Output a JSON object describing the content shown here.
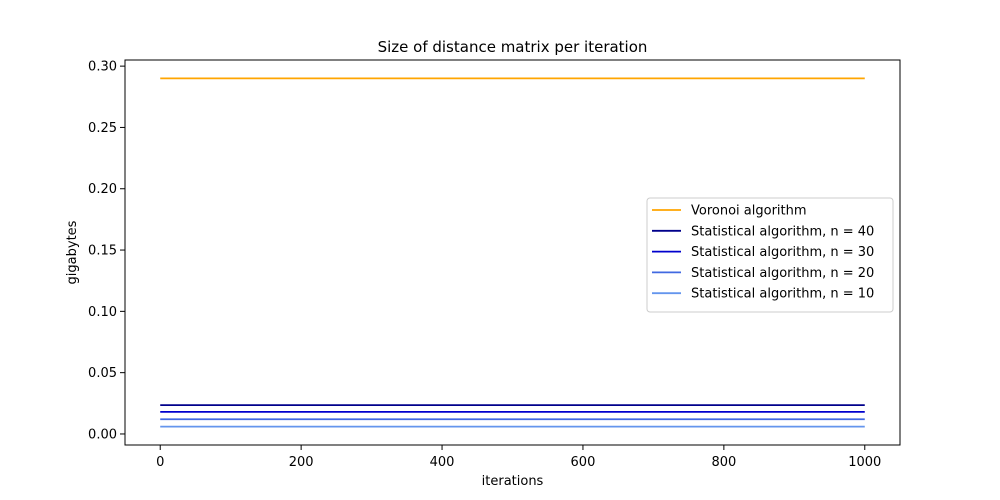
{
  "chart_data": {
    "type": "line",
    "title": "Size of distance matrix per iteration",
    "xlabel": "iterations",
    "ylabel": "gigabytes",
    "xlim": [
      -50,
      1050
    ],
    "ylim": [
      -0.009,
      0.305
    ],
    "xticks": [
      0,
      200,
      400,
      600,
      800,
      1000
    ],
    "xtick_labels": [
      "0",
      "200",
      "400",
      "600",
      "800",
      "1000"
    ],
    "yticks": [
      0.0,
      0.05,
      0.1,
      0.15,
      0.2,
      0.25,
      0.3
    ],
    "ytick_labels": [
      "0.00",
      "0.05",
      "0.10",
      "0.15",
      "0.20",
      "0.25",
      "0.30"
    ],
    "grid": false,
    "legend_position": "center-right",
    "series": [
      {
        "name": "Voronoi algorithm",
        "color": "#FFA500",
        "x": [
          0,
          1000
        ],
        "y": [
          0.29,
          0.29
        ]
      },
      {
        "name": "Statistical algorithm, n = 40",
        "color": "#00008B",
        "x": [
          0,
          1000
        ],
        "y": [
          0.0235,
          0.0235
        ]
      },
      {
        "name": "Statistical algorithm, n = 30",
        "color": "#0000CD",
        "x": [
          0,
          1000
        ],
        "y": [
          0.018,
          0.018
        ]
      },
      {
        "name": "Statistical algorithm, n = 20",
        "color": "#4169E1",
        "x": [
          0,
          1000
        ],
        "y": [
          0.012,
          0.012
        ]
      },
      {
        "name": "Statistical algorithm, n = 10",
        "color": "#6495ED",
        "x": [
          0,
          1000
        ],
        "y": [
          0.006,
          0.006
        ]
      }
    ]
  }
}
